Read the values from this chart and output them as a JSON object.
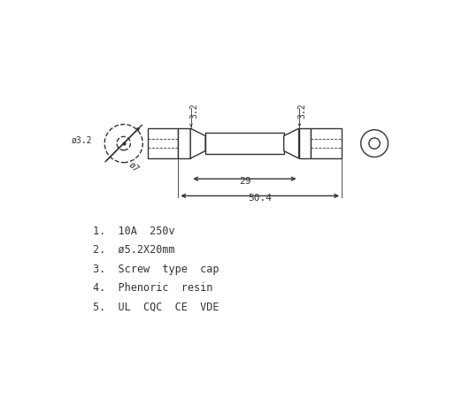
{
  "bg_color": "#ffffff",
  "line_color": "#333333",
  "text_color": "#333333",
  "fig_width": 5.22,
  "fig_height": 4.59,
  "dpi": 100,
  "specs": [
    "1.  10A  250v",
    "2.  ø5.2X20mm",
    "3.  Screw  type  cap",
    "4.  Phenoric  resin",
    "5.  UL  CQC  CE  VDE"
  ]
}
